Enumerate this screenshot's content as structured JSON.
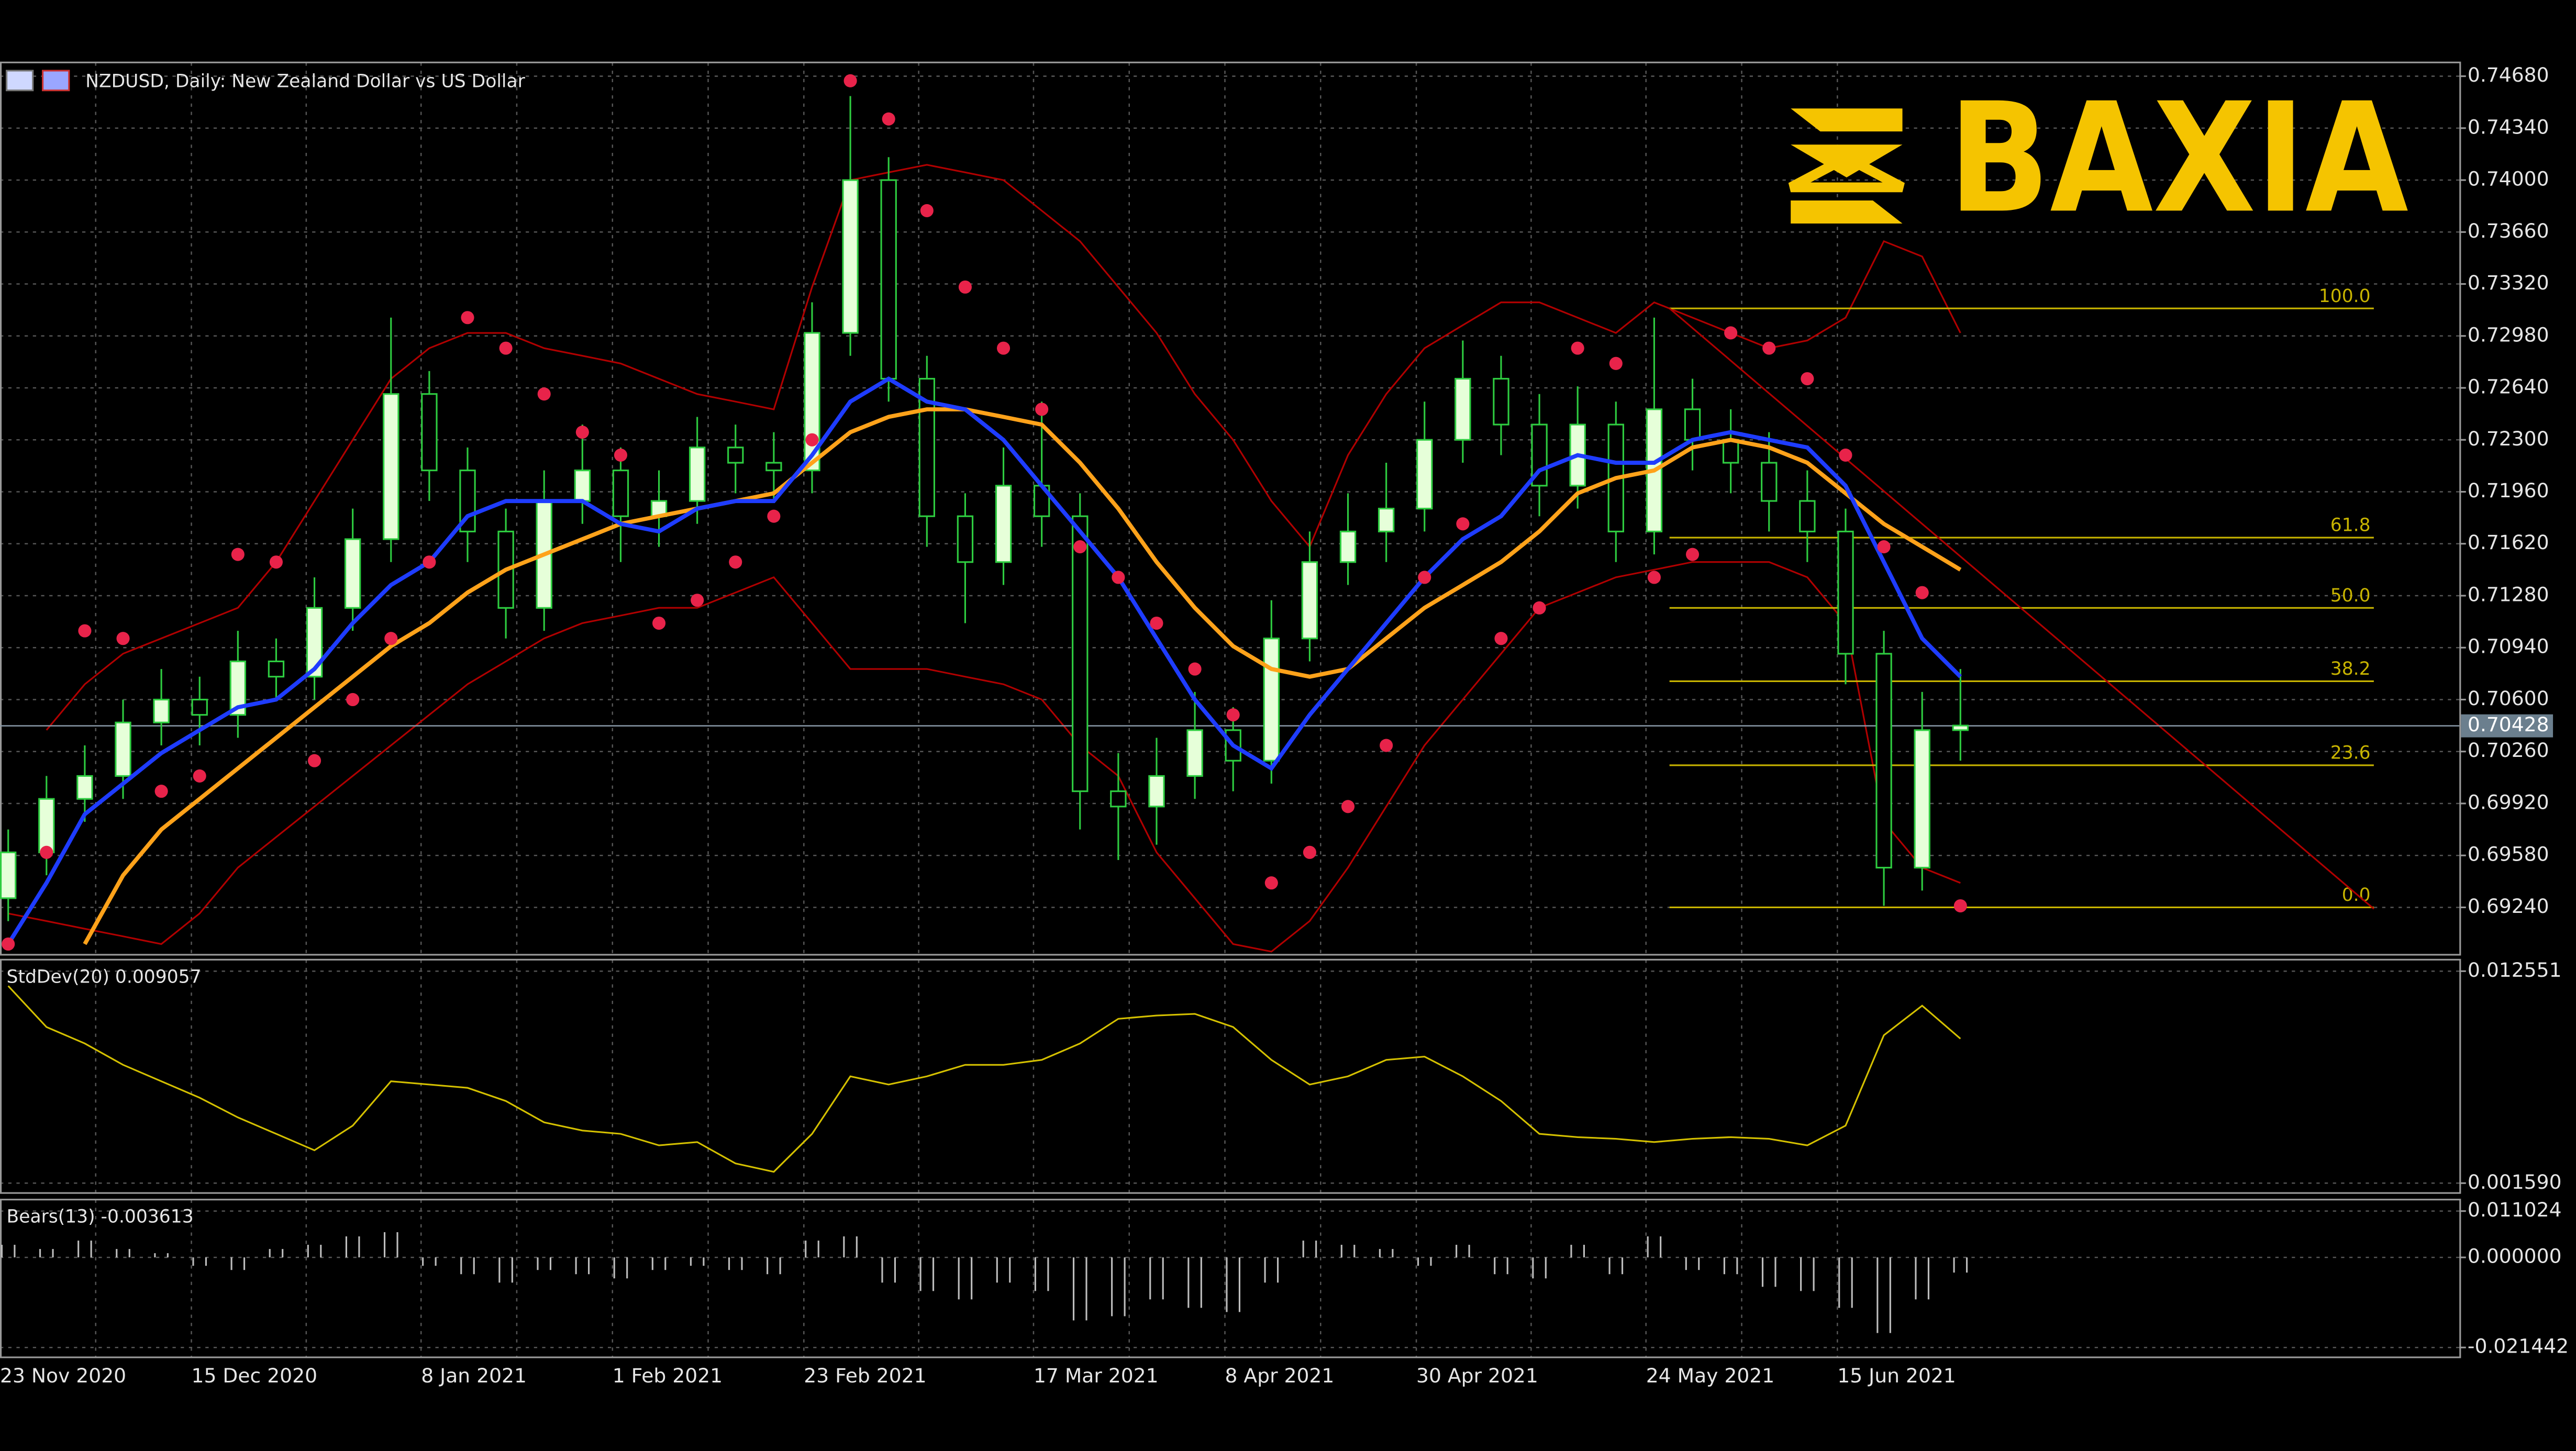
{
  "chart_data": {
    "type": "candlestick",
    "title": "NZDUSD, Daily:  New Zealand Dollar vs US Dollar",
    "logo": "BAXIA",
    "categories": [
      "23 Nov 2020",
      null,
      null,
      null,
      null,
      "15 Dec 2020",
      null,
      null,
      null,
      null,
      null,
      "8 Jan 2021",
      null,
      null,
      null,
      null,
      "1 Feb 2021",
      null,
      null,
      null,
      null,
      "23 Feb 2021",
      null,
      null,
      null,
      null,
      null,
      "17 Mar 2021",
      null,
      null,
      null,
      null,
      "8 Apr 2021",
      null,
      null,
      null,
      null,
      "30 Apr 2021",
      null,
      null,
      null,
      null,
      null,
      "24 May 2021",
      null,
      null,
      null,
      null,
      "15 Jun 2021",
      null,
      null,
      null
    ],
    "candles": [
      [
        0.693,
        0.6975,
        0.6915,
        0.696
      ],
      [
        0.696,
        0.701,
        0.6945,
        0.6995
      ],
      [
        0.6995,
        0.703,
        0.698,
        0.701
      ],
      [
        0.701,
        0.706,
        0.6995,
        0.7045
      ],
      [
        0.7045,
        0.708,
        0.703,
        0.706
      ],
      [
        0.706,
        0.7075,
        0.703,
        0.705
      ],
      [
        0.705,
        0.7105,
        0.7035,
        0.7085
      ],
      [
        0.7085,
        0.71,
        0.706,
        0.7075
      ],
      [
        0.7075,
        0.714,
        0.706,
        0.712
      ],
      [
        0.712,
        0.7185,
        0.7105,
        0.7165
      ],
      [
        0.7165,
        0.731,
        0.715,
        0.726
      ],
      [
        0.726,
        0.7275,
        0.719,
        0.721
      ],
      [
        0.721,
        0.7225,
        0.715,
        0.717
      ],
      [
        0.717,
        0.7185,
        0.71,
        0.712
      ],
      [
        0.712,
        0.721,
        0.7105,
        0.719
      ],
      [
        0.719,
        0.724,
        0.7175,
        0.721
      ],
      [
        0.721,
        0.7225,
        0.715,
        0.718
      ],
      [
        0.718,
        0.721,
        0.716,
        0.719
      ],
      [
        0.719,
        0.7245,
        0.7175,
        0.7225
      ],
      [
        0.7225,
        0.724,
        0.7195,
        0.7215
      ],
      [
        0.7215,
        0.7235,
        0.719,
        0.721
      ],
      [
        0.721,
        0.732,
        0.7195,
        0.73
      ],
      [
        0.73,
        0.7455,
        0.7285,
        0.74
      ],
      [
        0.74,
        0.7415,
        0.7255,
        0.727
      ],
      [
        0.727,
        0.7285,
        0.716,
        0.718
      ],
      [
        0.718,
        0.7195,
        0.711,
        0.715
      ],
      [
        0.715,
        0.7225,
        0.7135,
        0.72
      ],
      [
        0.72,
        0.7255,
        0.716,
        0.718
      ],
      [
        0.718,
        0.7195,
        0.6975,
        0.7
      ],
      [
        0.7,
        0.7025,
        0.6955,
        0.699
      ],
      [
        0.699,
        0.7035,
        0.6965,
        0.701
      ],
      [
        0.701,
        0.7065,
        0.6995,
        0.704
      ],
      [
        0.704,
        0.7055,
        0.7,
        0.702
      ],
      [
        0.702,
        0.7125,
        0.7005,
        0.71
      ],
      [
        0.71,
        0.717,
        0.7085,
        0.715
      ],
      [
        0.715,
        0.7195,
        0.7135,
        0.717
      ],
      [
        0.717,
        0.7215,
        0.715,
        0.7185
      ],
      [
        0.7185,
        0.7255,
        0.717,
        0.723
      ],
      [
        0.723,
        0.7295,
        0.7215,
        0.727
      ],
      [
        0.727,
        0.7285,
        0.722,
        0.724
      ],
      [
        0.724,
        0.726,
        0.718,
        0.72
      ],
      [
        0.72,
        0.7265,
        0.7185,
        0.724
      ],
      [
        0.724,
        0.7255,
        0.715,
        0.717
      ],
      [
        0.717,
        0.731,
        0.7155,
        0.725
      ],
      [
        0.725,
        0.727,
        0.721,
        0.723
      ],
      [
        0.723,
        0.725,
        0.7195,
        0.7215
      ],
      [
        0.7215,
        0.7235,
        0.717,
        0.719
      ],
      [
        0.719,
        0.721,
        0.715,
        0.717
      ],
      [
        0.717,
        0.7185,
        0.707,
        0.709
      ],
      [
        0.709,
        0.7105,
        0.6925,
        0.695
      ],
      [
        0.695,
        0.7065,
        0.6935,
        0.704
      ],
      [
        0.704,
        0.708,
        0.702,
        0.7043
      ]
    ],
    "candle_colors": {
      "up": "#e6ffd9",
      "down": "#000000",
      "outline": "#2ecc40"
    },
    "ma_fast": {
      "color": "#1e3cff",
      "values": [
        0.69,
        0.694,
        0.6985,
        0.7005,
        0.7025,
        0.704,
        0.7055,
        0.706,
        0.708,
        0.711,
        0.7135,
        0.715,
        0.718,
        0.719,
        0.719,
        0.719,
        0.7175,
        0.717,
        0.7185,
        0.719,
        0.719,
        0.722,
        0.7255,
        0.727,
        0.7255,
        0.725,
        0.723,
        0.72,
        0.717,
        0.714,
        0.71,
        0.706,
        0.703,
        0.7015,
        0.705,
        0.708,
        0.711,
        0.714,
        0.7165,
        0.718,
        0.721,
        0.722,
        0.7215,
        0.7215,
        0.723,
        0.7235,
        0.723,
        0.7225,
        0.72,
        0.715,
        0.71,
        0.7075
      ]
    },
    "ma_slow": {
      "color": "#ffa21a",
      "values": [
        null,
        null,
        0.69,
        0.6945,
        0.6975,
        0.6995,
        0.7015,
        0.7035,
        0.7055,
        0.7075,
        0.7095,
        0.711,
        0.713,
        0.7145,
        0.7155,
        0.7165,
        0.7175,
        0.718,
        0.7185,
        0.719,
        0.7195,
        0.7215,
        0.7235,
        0.7245,
        0.725,
        0.725,
        0.7245,
        0.724,
        0.7215,
        0.7185,
        0.715,
        0.712,
        0.7095,
        0.708,
        0.7075,
        0.708,
        0.71,
        0.712,
        0.7135,
        0.715,
        0.717,
        0.7195,
        0.7205,
        0.721,
        0.7225,
        0.723,
        0.7225,
        0.7215,
        0.7195,
        0.7175,
        0.716,
        0.7145
      ]
    },
    "band_upper": {
      "color": "#b00000",
      "values": [
        null,
        0.704,
        0.707,
        0.709,
        0.71,
        0.711,
        0.712,
        0.715,
        0.719,
        0.723,
        0.727,
        0.729,
        0.73,
        0.73,
        0.729,
        0.7285,
        0.728,
        0.727,
        0.726,
        0.7255,
        0.725,
        0.733,
        0.74,
        0.7405,
        0.741,
        0.7405,
        0.74,
        0.738,
        0.736,
        0.733,
        0.73,
        0.726,
        0.723,
        0.719,
        0.716,
        0.722,
        0.726,
        0.729,
        0.7305,
        0.732,
        0.732,
        0.731,
        0.73,
        0.732,
        0.731,
        0.73,
        0.729,
        0.7295,
        0.731,
        0.736,
        0.735,
        0.73
      ]
    },
    "band_lower": {
      "color": "#b00000",
      "values": [
        0.692,
        0.6915,
        0.691,
        0.6905,
        0.69,
        0.692,
        0.695,
        0.697,
        0.699,
        0.701,
        0.703,
        0.705,
        0.707,
        0.7085,
        0.71,
        0.711,
        0.7115,
        0.712,
        0.712,
        0.713,
        0.714,
        0.711,
        0.708,
        0.708,
        0.708,
        0.7075,
        0.707,
        0.706,
        0.703,
        0.701,
        0.696,
        0.693,
        0.69,
        0.6895,
        0.6915,
        0.695,
        0.699,
        0.703,
        0.706,
        0.709,
        0.712,
        0.713,
        0.714,
        0.7145,
        0.715,
        0.715,
        0.715,
        0.714,
        0.711,
        0.698,
        0.695,
        0.694
      ]
    },
    "sar": {
      "color": "#e8234a",
      "values": [
        0.69,
        0.696,
        0.7105,
        0.71,
        0.7,
        0.701,
        0.7155,
        0.715,
        0.702,
        0.706,
        0.71,
        0.715,
        0.731,
        0.729,
        0.726,
        0.7235,
        0.722,
        0.711,
        0.7125,
        0.715,
        0.718,
        0.723,
        0.7465,
        0.744,
        0.738,
        0.733,
        0.729,
        0.725,
        0.716,
        0.714,
        0.711,
        0.708,
        0.705,
        0.694,
        0.696,
        0.699,
        0.703,
        0.714,
        0.7175,
        0.71,
        0.712,
        0.729,
        0.728,
        0.714,
        0.7155,
        0.73,
        0.729,
        0.727,
        0.722,
        0.716,
        0.713,
        0.6925
      ]
    },
    "fibonacci": {
      "color": "#c8b400",
      "bars": [
        43.4,
        61.8
      ],
      "levels": [
        {
          "label": "100.0",
          "price": 0.7316
        },
        {
          "label": "61.8",
          "price": 0.7166
        },
        {
          "label": "50.0",
          "price": 0.712
        },
        {
          "label": "38.2",
          "price": 0.7072
        },
        {
          "label": "23.6",
          "price": 0.7017
        },
        {
          "label": "0.0",
          "price": 0.6924
        }
      ]
    },
    "trendline": {
      "color": "#b00000",
      "bars": [
        43.4,
        61.8
      ],
      "prices": [
        0.7316,
        0.6923
      ]
    },
    "current_price": {
      "value": 0.70428,
      "label": "0.70428"
    },
    "ylim": [
      0.6893,
      0.7477
    ],
    "yticks": [
      {
        "value": 0.7468,
        "label": "0.74680"
      },
      {
        "value": 0.7434,
        "label": "0.74340"
      },
      {
        "value": 0.74,
        "label": "0.74000"
      },
      {
        "value": 0.7366,
        "label": "0.73660"
      },
      {
        "value": 0.7332,
        "label": "0.73320"
      },
      {
        "value": 0.7298,
        "label": "0.72980"
      },
      {
        "value": 0.7264,
        "label": "0.72640"
      },
      {
        "value": 0.723,
        "label": "0.72300"
      },
      {
        "value": 0.7196,
        "label": "0.71960"
      },
      {
        "value": 0.7162,
        "label": "0.71620"
      },
      {
        "value": 0.7128,
        "label": "0.71280"
      },
      {
        "value": 0.7094,
        "label": "0.70940"
      },
      {
        "value": 0.706,
        "label": "0.70600"
      },
      {
        "value": 0.7026,
        "label": "0.70260"
      },
      {
        "value": 0.6992,
        "label": "0.69920"
      },
      {
        "value": 0.6958,
        "label": "0.69580"
      },
      {
        "value": 0.6924,
        "label": "0.69240"
      }
    ],
    "grid": true,
    "stddev": {
      "title": "StdDev(20) 0.009057",
      "color": "#d4c000",
      "values": [
        0.01179,
        0.00966,
        0.00881,
        0.00771,
        0.00686,
        0.00601,
        0.00499,
        0.00414,
        0.00329,
        0.00456,
        0.00686,
        0.00669,
        0.00652,
        0.00584,
        0.00473,
        0.00431,
        0.00414,
        0.00354,
        0.00371,
        0.00261,
        0.00218,
        0.00414,
        0.00711,
        0.00669,
        0.00711,
        0.00771,
        0.00771,
        0.00796,
        0.00881,
        0.01009,
        0.01026,
        0.01034,
        0.00966,
        0.00796,
        0.00669,
        0.00711,
        0.00796,
        0.00813,
        0.00711,
        0.00584,
        0.00414,
        0.00397,
        0.00388,
        0.00371,
        0.00388,
        0.00397,
        0.00388,
        0.00354,
        0.00456,
        0.00924,
        0.01077,
        0.009057
      ],
      "ylim": [
        0.00108,
        0.013146
      ],
      "yticks": [
        0.012551,
        {
          "value": 0.00159,
          "label": "0.001590"
        }
      ]
    },
    "bears": {
      "title": "Bears(13) -0.003613",
      "color": "#bdbdbd",
      "values": [
        0.003,
        0.002,
        0.004,
        0.002,
        0.001,
        -0.002,
        -0.003,
        0.002,
        0.003,
        0.005,
        0.006,
        -0.002,
        -0.004,
        -0.006,
        -0.003,
        -0.004,
        -0.005,
        -0.003,
        -0.002,
        -0.003,
        -0.004,
        0.004,
        0.005,
        -0.006,
        -0.008,
        -0.01,
        -0.006,
        -0.008,
        -0.015,
        -0.014,
        -0.01,
        -0.012,
        -0.013,
        -0.006,
        0.004,
        0.003,
        0.002,
        -0.002,
        0.003,
        -0.004,
        -0.005,
        0.003,
        -0.004,
        0.005,
        -0.003,
        -0.004,
        -0.007,
        -0.008,
        -0.012,
        -0.018,
        -0.01,
        -0.003613
      ],
      "ylim": [
        -0.023788,
        0.013761
      ],
      "yticks": [
        0.011024,
        {
          "value": 0,
          "label": "0.000000"
        },
        -0.021442
      ]
    }
  }
}
